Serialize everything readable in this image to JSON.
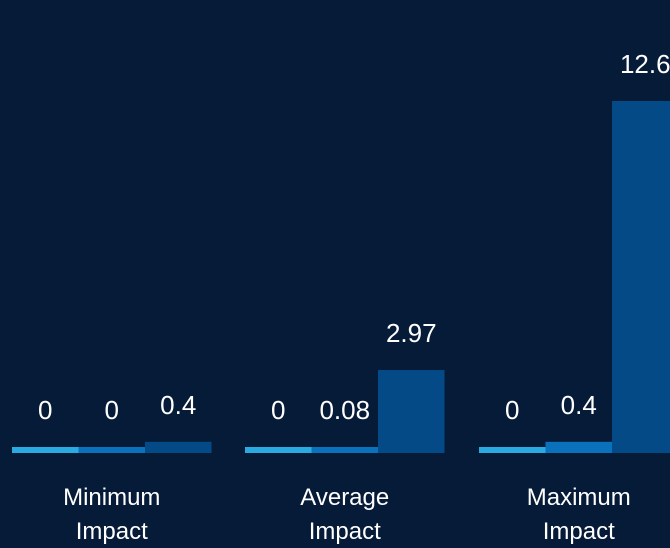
{
  "chart_data": {
    "type": "bar",
    "categories": [
      [
        "Minimum",
        "Impact"
      ],
      [
        "Average",
        "Impact"
      ],
      [
        "Maximum",
        "Impact"
      ]
    ],
    "series": [
      {
        "values": [
          0,
          0,
          0
        ],
        "color": "#29abe2"
      },
      {
        "values": [
          0,
          0.08,
          0.4
        ],
        "color": "#0a72bd"
      },
      {
        "values": [
          0.4,
          2.97,
          12.6
        ],
        "color": "#044a87"
      }
    ],
    "value_labels": [
      [
        "0",
        "0",
        "0"
      ],
      [
        "0",
        "0.08",
        "0.4"
      ],
      [
        "0.4",
        "2.97",
        "12.6"
      ]
    ],
    "title": "",
    "xlabel": "",
    "ylabel": "",
    "ylim": [
      0,
      12.6
    ],
    "grid": false,
    "background": "#061b38",
    "text_color": "#ffffff"
  }
}
